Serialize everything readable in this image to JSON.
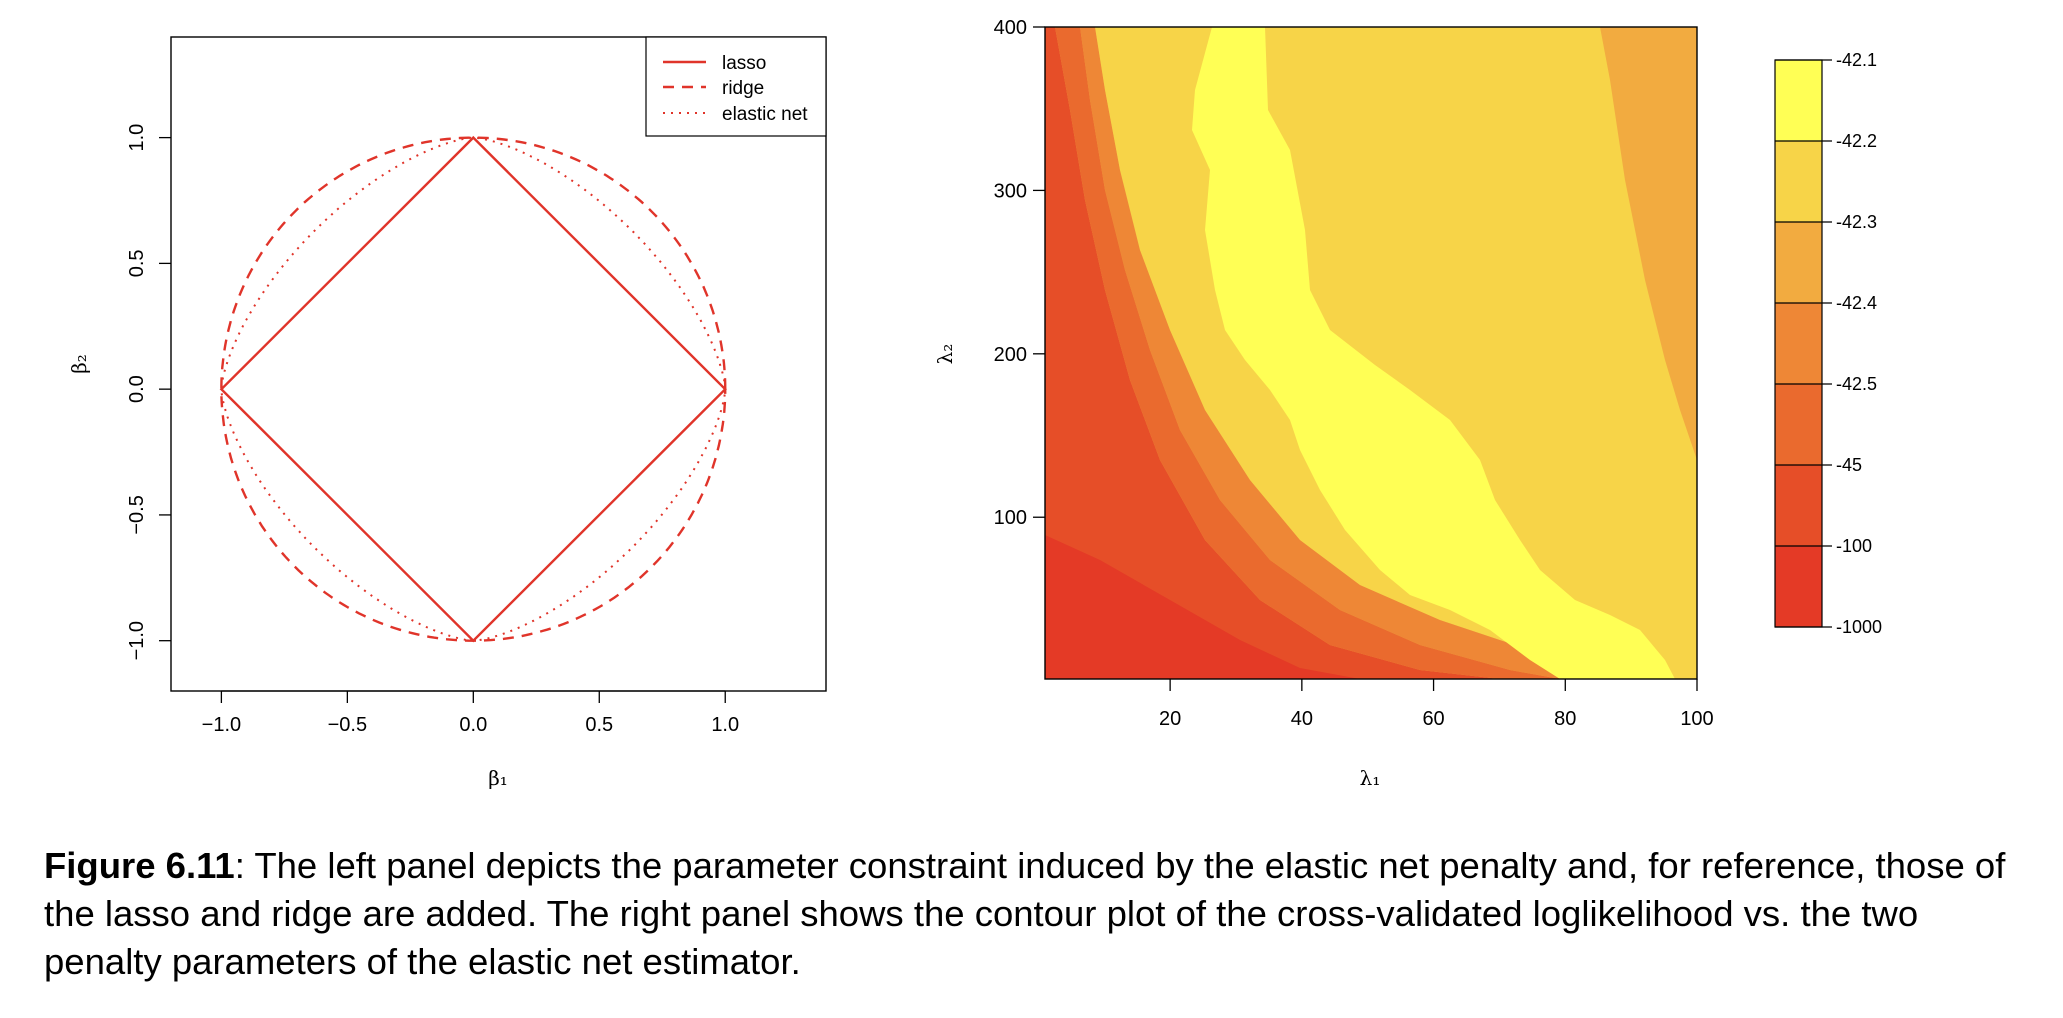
{
  "chart_data": [
    {
      "type": "line",
      "xlabel": "β₁",
      "ylabel": "β₂",
      "xlim": [
        -1.2,
        1.4
      ],
      "ylim": [
        -1.2,
        1.4
      ],
      "xticks": [
        "−1.0",
        "−0.5",
        "0.0",
        "0.5",
        "1.0"
      ],
      "yticks": [
        "−1.0",
        "−0.5",
        "0.0",
        "0.5",
        "1.0"
      ],
      "grid": false,
      "legend_position": "top-right",
      "series": [
        {
          "name": "lasso",
          "line_style": "solid",
          "color": "#e0342a",
          "x": [
            1,
            0,
            -1,
            0,
            1
          ],
          "y": [
            0,
            1,
            0,
            -1,
            0
          ]
        },
        {
          "name": "ridge",
          "line_style": "dashed",
          "color": "#e0342a",
          "shape": "unit circle"
        },
        {
          "name": "elastic net",
          "line_style": "dotted",
          "color": "#e0342a",
          "shape": "between lasso and ridge"
        }
      ]
    },
    {
      "type": "heatmap",
      "xlabel": "λ₁",
      "ylabel": "λ₂",
      "xlim": [
        1,
        100
      ],
      "ylim": [
        1,
        400
      ],
      "xticks": [
        20,
        40,
        60,
        80,
        100
      ],
      "yticks": [
        100,
        200,
        300,
        400
      ],
      "colorbar": {
        "labels": [
          "-42.1",
          "-42.2",
          "-42.3",
          "-42.4",
          "-42.5",
          "-45",
          "-100",
          "-1000"
        ],
        "colors": [
          "#ffff55",
          "#f7d448",
          "#f2ab40",
          "#ee8736",
          "#ea6a2e",
          "#e64e28",
          "#e43a26"
        ]
      }
    }
  ],
  "caption": {
    "label": "Figure 6.11",
    "text": ": The left panel depicts the parameter constraint induced by the elastic net penalty and, for reference, those of the lasso and ridge are added. The right panel shows the contour plot of the cross-validated loglikelihood vs. the two penalty parameters of the elastic net estimator."
  }
}
